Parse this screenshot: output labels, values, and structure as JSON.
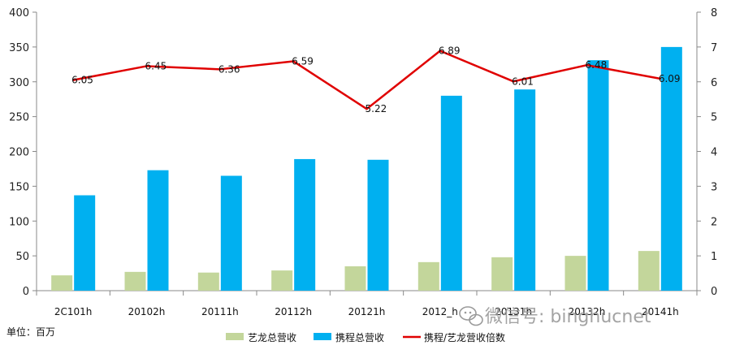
{
  "chart_data": {
    "type": "bar",
    "categories": [
      "2C101h",
      "20102h",
      "20111h",
      "20112h",
      "20121h",
      "2012_h",
      "20131h",
      "20132h",
      "20141h"
    ],
    "series": [
      {
        "name": "艺龙总营收",
        "kind": "bar",
        "axis": "left",
        "color": "#c3d69b",
        "values": [
          22,
          27,
          26,
          29,
          35,
          41,
          48,
          50,
          57
        ]
      },
      {
        "name": "携程总营收",
        "kind": "bar",
        "axis": "left",
        "color": "#00b0f0",
        "values": [
          137,
          173,
          165,
          189,
          188,
          280,
          289,
          331,
          350
        ]
      },
      {
        "name": "携程/艺龙营收倍数",
        "kind": "line",
        "axis": "right",
        "color": "#e00000",
        "values": [
          6.05,
          6.45,
          6.36,
          6.59,
          5.22,
          6.89,
          6.01,
          6.48,
          6.09
        ],
        "labels": [
          "6.05",
          "6.45",
          "6.36",
          "6.59",
          "5.22",
          "6.89",
          "6.01",
          "6.48",
          "6.09"
        ]
      }
    ],
    "ylim": [
      0,
      400
    ],
    "y2lim": [
      0,
      8
    ],
    "yticks": [
      "0",
      "50",
      "100",
      "150",
      "200",
      "250",
      "300",
      "350",
      "400"
    ],
    "y2ticks": [
      "0",
      "1",
      "2",
      "3",
      "4",
      "5",
      "6",
      "7",
      "8"
    ],
    "legend_position": "bottom",
    "grid": false
  },
  "unit_label": "单位：百万",
  "watermark": "微信号: binghucnet"
}
